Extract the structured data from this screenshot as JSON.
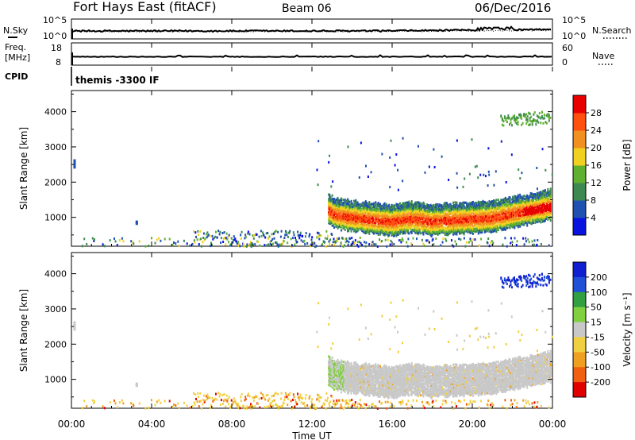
{
  "header": {
    "station": "Fort Hays East (fitACF)",
    "beam": "Beam 06",
    "date": "06/Dec/2016"
  },
  "panels": {
    "nsky_label": "N.Sky",
    "nsky_tick_top": "10^5",
    "nsky_tick_bottom": "10^0",
    "nsky_right_top": "10^5",
    "nsky_right_bottom": "10^0",
    "nsearch_label": "N.Search",
    "freq_label_1": "Freq.",
    "freq_label_2": "[MHz]",
    "freq_tick_top": "18",
    "freq_tick_bottom": "8",
    "nave_tick_top": "60",
    "nave_tick_bottom": "0",
    "nave_label": "Nave",
    "cpid_label": "CPID",
    "cpid_value": "themis -3300 IF"
  },
  "chart_data": [
    {
      "type": "heatmap",
      "name": "power",
      "ylabel": "Slant Range [km]",
      "ylim": [
        180,
        4600
      ],
      "yticks": [
        1000,
        2000,
        3000,
        4000
      ],
      "xlim": [
        0,
        24
      ],
      "colorbar": {
        "label": "Power [dB]",
        "ticks": [
          "4",
          "8",
          "12",
          "16",
          "20",
          "24",
          "28"
        ],
        "colors": [
          "#0a12e0",
          "#2050b0",
          "#3c8a50",
          "#60b030",
          "#f0d020",
          "#f09020",
          "#ff5010",
          "#e80000"
        ]
      },
      "segments": [
        {
          "label": "backscatter band",
          "from_hour": 12.8,
          "to_hour": 24.0,
          "range_km": [
            800,
            1900
          ]
        },
        {
          "label": "far range echoes",
          "from_hour": 21.4,
          "to_hour": 24.0,
          "range_km": [
            3500,
            4100
          ]
        },
        {
          "label": "near range clutter",
          "from_hour": 0.0,
          "to_hour": 24.0,
          "range_km": [
            180,
            500
          ]
        }
      ]
    },
    {
      "type": "heatmap",
      "name": "velocity",
      "ylabel": "Slant Range [km]",
      "ylim": [
        180,
        4600
      ],
      "yticks": [
        1000,
        2000,
        3000,
        4000
      ],
      "xlim": [
        0,
        24
      ],
      "xticks": [
        "00:00",
        "04:00",
        "08:00",
        "12:00",
        "16:00",
        "20:00",
        "00:00"
      ],
      "xlabel": "Time UT",
      "colorbar": {
        "label": "Velocity [m s⁻¹]",
        "ticks": [
          "200",
          "100",
          "50",
          "15",
          "-15",
          "-50",
          "-100",
          "-200"
        ],
        "colors": [
          "#1020d0",
          "#2050d8",
          "#30a040",
          "#80d040",
          "#c8c8c8",
          "#f0d040",
          "#f0a020",
          "#f06010",
          "#e00000"
        ]
      }
    }
  ]
}
